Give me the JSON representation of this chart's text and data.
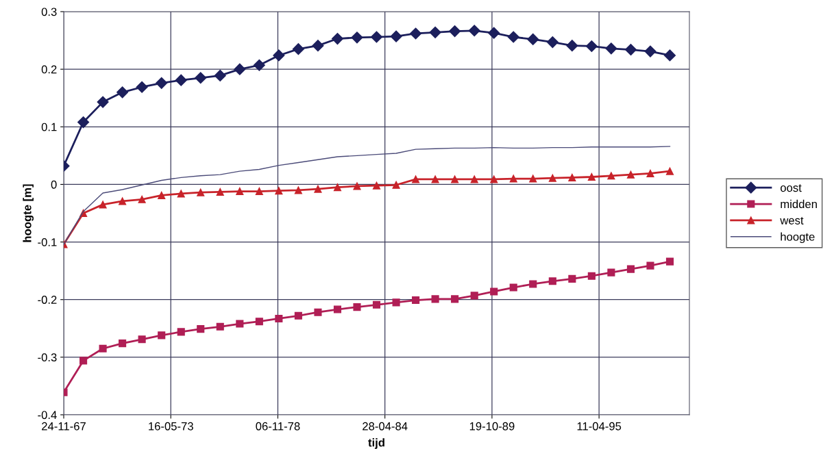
{
  "chart_data": {
    "type": "line",
    "xlabel": "tijd",
    "ylabel": "hoogte [m]",
    "x": [
      "1967-11-24",
      "1968-11-24",
      "1969-11-24",
      "1970-11-24",
      "1971-11-24",
      "1972-11-24",
      "1973-11-24",
      "1974-11-24",
      "1975-11-24",
      "1976-11-24",
      "1977-11-24",
      "1978-11-24",
      "1979-11-24",
      "1980-11-24",
      "1981-11-24",
      "1982-11-24",
      "1983-11-24",
      "1984-11-24",
      "1985-11-24",
      "1986-11-24",
      "1987-11-24",
      "1988-11-24",
      "1989-11-24",
      "1990-11-24",
      "1991-11-24",
      "1992-11-24",
      "1993-11-24",
      "1994-11-24",
      "1995-11-24",
      "1996-11-24",
      "1997-11-24",
      "1998-11-24"
    ],
    "series": [
      {
        "name": "oost",
        "color": "#1c1f5c",
        "marker": "diamond",
        "values": [
          0.032,
          0.108,
          0.143,
          0.16,
          0.169,
          0.176,
          0.181,
          0.185,
          0.189,
          0.2,
          0.207,
          0.224,
          0.235,
          0.241,
          0.253,
          0.255,
          0.256,
          0.257,
          0.262,
          0.264,
          0.266,
          0.267,
          0.263,
          0.256,
          0.252,
          0.247,
          0.241,
          0.24,
          0.236,
          0.234,
          0.231,
          0.224
        ]
      },
      {
        "name": "midden",
        "color": "#b01e55",
        "marker": "square",
        "values": [
          -0.361,
          -0.306,
          -0.285,
          -0.276,
          -0.269,
          -0.262,
          -0.256,
          -0.251,
          -0.247,
          -0.242,
          -0.238,
          -0.233,
          -0.228,
          -0.222,
          -0.217,
          -0.213,
          -0.209,
          -0.205,
          -0.201,
          -0.199,
          -0.199,
          -0.193,
          -0.186,
          -0.179,
          -0.173,
          -0.168,
          -0.164,
          -0.159,
          -0.153,
          -0.147,
          -0.141,
          -0.134
        ]
      },
      {
        "name": "west",
        "color": "#c8232a",
        "marker": "triangle",
        "values": [
          -0.104,
          -0.05,
          -0.035,
          -0.029,
          -0.026,
          -0.019,
          -0.016,
          -0.014,
          -0.013,
          -0.012,
          -0.012,
          -0.011,
          -0.01,
          -0.008,
          -0.005,
          -0.003,
          -0.002,
          -0.001,
          0.009,
          0.009,
          0.009,
          0.009,
          0.009,
          0.01,
          0.01,
          0.011,
          0.012,
          0.013,
          0.015,
          0.017,
          0.019,
          0.023
        ]
      },
      {
        "name": "hoogte",
        "color": "#4a4a78",
        "marker": "none",
        "values": [
          -0.104,
          -0.047,
          -0.015,
          -0.009,
          -0.001,
          0.007,
          0.012,
          0.015,
          0.017,
          0.023,
          0.026,
          0.033,
          0.038,
          0.043,
          0.048,
          0.05,
          0.052,
          0.054,
          0.061,
          0.062,
          0.063,
          0.063,
          0.064,
          0.063,
          0.063,
          0.064,
          0.064,
          0.065,
          0.065,
          0.065,
          0.065,
          0.066
        ]
      }
    ],
    "xlim": [
      "1967-11-24",
      "1999-11-24"
    ],
    "xticks": [
      {
        "value": "1967-11-24",
        "label": "24-11-67"
      },
      {
        "value": "1973-05-16",
        "label": "16-05-73"
      },
      {
        "value": "1978-11-06",
        "label": "06-11-78"
      },
      {
        "value": "1984-04-28",
        "label": "28-04-84"
      },
      {
        "value": "1989-10-19",
        "label": "19-10-89"
      },
      {
        "value": "1995-04-11",
        "label": "11-04-95"
      }
    ],
    "ylim": [
      -0.4,
      0.3
    ],
    "yticks": [
      -0.4,
      -0.3,
      -0.2,
      -0.1,
      0,
      0.1,
      0.2,
      0.3
    ],
    "grid": true,
    "legend": "right",
    "line_style": "solid"
  }
}
